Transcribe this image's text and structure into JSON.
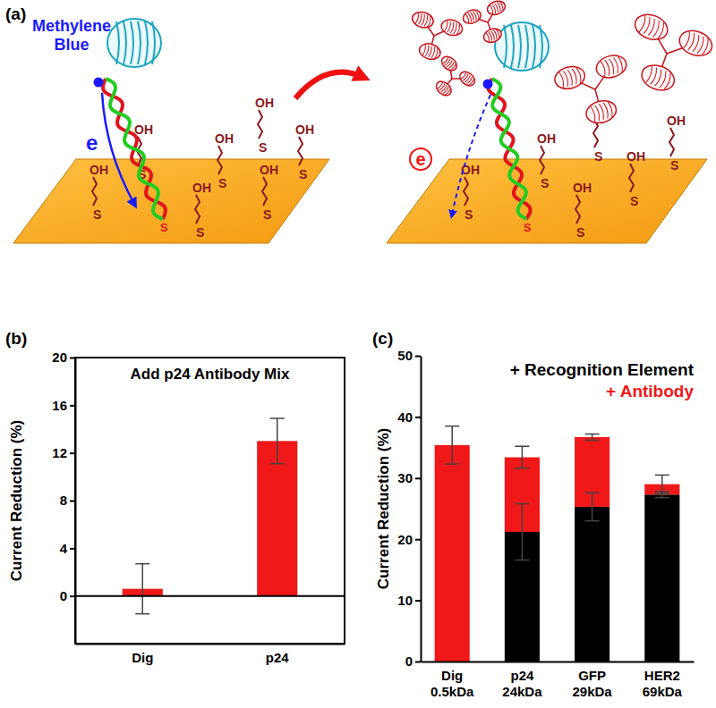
{
  "chart_data": [
    {
      "type": "bar",
      "annotations": [
        "(b)"
      ],
      "title": "Add p24 Antibody Mix",
      "y_label": "Current Reduction (%)",
      "categories": [
        "Dig",
        "p24"
      ],
      "values": [
        0.6,
        13.0
      ],
      "errors": [
        2.1,
        1.9
      ],
      "color": "#f01818",
      "ylim": [
        -4,
        20
      ],
      "yticks": [
        0,
        4,
        8,
        12,
        16,
        20
      ]
    },
    {
      "type": "bar",
      "stacked": true,
      "annotations": [
        "(c)"
      ],
      "y_label": "Current Reduction (%)",
      "categories": [
        "Dig\n0.5kDa",
        "p24\n24kDa",
        "GFP\n29kDa",
        "HER2\n69kDa"
      ],
      "series": [
        {
          "name": "+ Recognition Element",
          "color": "#000000",
          "values": [
            0,
            21.2,
            25.3,
            27.3
          ],
          "errors": [
            null,
            4.6,
            2.3,
            0.5
          ]
        },
        {
          "name": "+ Antibody",
          "color": "#f01818",
          "values": [
            35.4,
            12.2,
            11.4,
            1.7
          ],
          "errors": [
            3.1,
            1.8,
            0.5,
            1.5
          ]
        }
      ],
      "legend": "top-right",
      "ylim": [
        0,
        50
      ],
      "yticks": [
        0,
        10,
        20,
        30,
        40,
        50
      ]
    }
  ],
  "diagram": {
    "panel_label": "(a)",
    "dye_label": "Methylene\nBlue",
    "electron_label": "e",
    "hydroxyl_label": "OH",
    "sulfur_label": "S"
  }
}
